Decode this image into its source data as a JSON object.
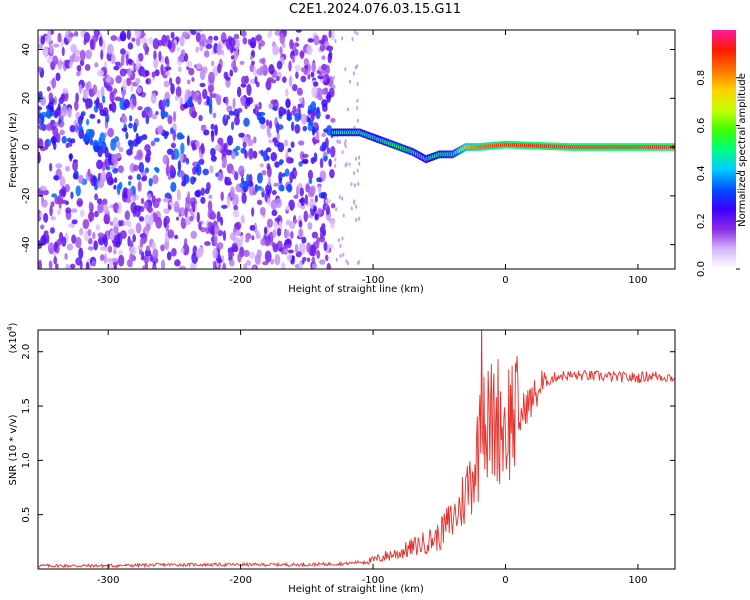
{
  "title": "C2E1.2024.076.03.15.G11",
  "colors": {
    "snr_line": "#e8302b",
    "colormap": [
      "#ffffff",
      "#d7b6ff",
      "#8a2be2",
      "#3a00ff",
      "#0050ff",
      "#00ccff",
      "#00ff80",
      "#40ff00",
      "#c8ff00",
      "#ffd000",
      "#ff7000",
      "#ff1a00",
      "#ff1aa0"
    ]
  },
  "chart_data": [
    {
      "type": "heatmap",
      "title": "",
      "xlabel": "Height of straight line (km)",
      "ylabel": "Frequency (Hz)",
      "xlim": [
        -353,
        128
      ],
      "ylim": [
        -50,
        48
      ],
      "x_ticks": [
        -300,
        -200,
        -100,
        0,
        100
      ],
      "y_ticks": [
        -40,
        -20,
        0,
        20,
        40
      ],
      "colorbar": {
        "label": "Normalized spectral amplitude",
        "range": [
          0.0,
          1.0
        ],
        "ticks": [
          0.0,
          0.2,
          0.4,
          0.6,
          0.8
        ]
      },
      "ridge": {
        "description_points": [
          {
            "x": -130,
            "y": 6
          },
          {
            "x": -110,
            "y": 6
          },
          {
            "x": -95,
            "y": 3
          },
          {
            "x": -80,
            "y": 0
          },
          {
            "x": -70,
            "y": -2
          },
          {
            "x": -60,
            "y": -5
          },
          {
            "x": -50,
            "y": -3
          },
          {
            "x": -40,
            "y": -3
          },
          {
            "x": -30,
            "y": 0
          },
          {
            "x": -20,
            "y": 0
          },
          {
            "x": 0,
            "y": 1
          },
          {
            "x": 50,
            "y": 0
          },
          {
            "x": 100,
            "y": 0
          },
          {
            "x": 128,
            "y": 0
          }
        ],
        "amplitude": [
          0.45,
          0.5,
          0.45,
          0.55,
          0.5,
          0.45,
          0.5,
          0.55,
          0.75,
          0.85,
          0.9,
          0.95,
          0.95,
          0.95
        ]
      },
      "noise_region": {
        "x_from": -353,
        "x_to": -130,
        "amplitude": 0.25
      }
    },
    {
      "type": "line",
      "title": "",
      "xlabel": "Height of straight line (km)",
      "ylabel": "SNR (10 * v/v)",
      "y_multiplier": "(x10",
      "y_multiplier_exp": "4",
      "y_multiplier_close": ")",
      "xlim": [
        -353,
        128
      ],
      "ylim": [
        0.0,
        2.2
      ],
      "x_ticks": [
        -300,
        -200,
        -100,
        0,
        100
      ],
      "y_ticks": [
        0.5,
        1.0,
        1.5,
        2.0
      ],
      "y_tick_labels": [
        "0.5",
        "1.0",
        "1.5",
        "2.0"
      ],
      "series": [
        {
          "x": [
            -353,
            -300,
            -250,
            -200,
            -150,
            -120,
            -100,
            -90,
            -80,
            -70,
            -60,
            -50,
            -45,
            -40,
            -35,
            -30,
            -25,
            -20,
            -18,
            -15,
            -10,
            -5,
            0,
            5,
            10,
            15,
            20,
            25,
            30,
            40,
            60,
            80,
            100,
            110,
            120,
            128
          ],
          "y": [
            0.03,
            0.03,
            0.04,
            0.04,
            0.04,
            0.05,
            0.08,
            0.12,
            0.15,
            0.2,
            0.25,
            0.3,
            0.4,
            0.45,
            0.55,
            0.7,
            0.9,
            1.1,
            2.2,
            1.3,
            1.35,
            1.4,
            1.3,
            1.45,
            1.35,
            1.5,
            1.55,
            1.65,
            1.72,
            1.78,
            1.78,
            1.77,
            1.76,
            1.78,
            1.77,
            1.76
          ]
        }
      ]
    }
  ]
}
